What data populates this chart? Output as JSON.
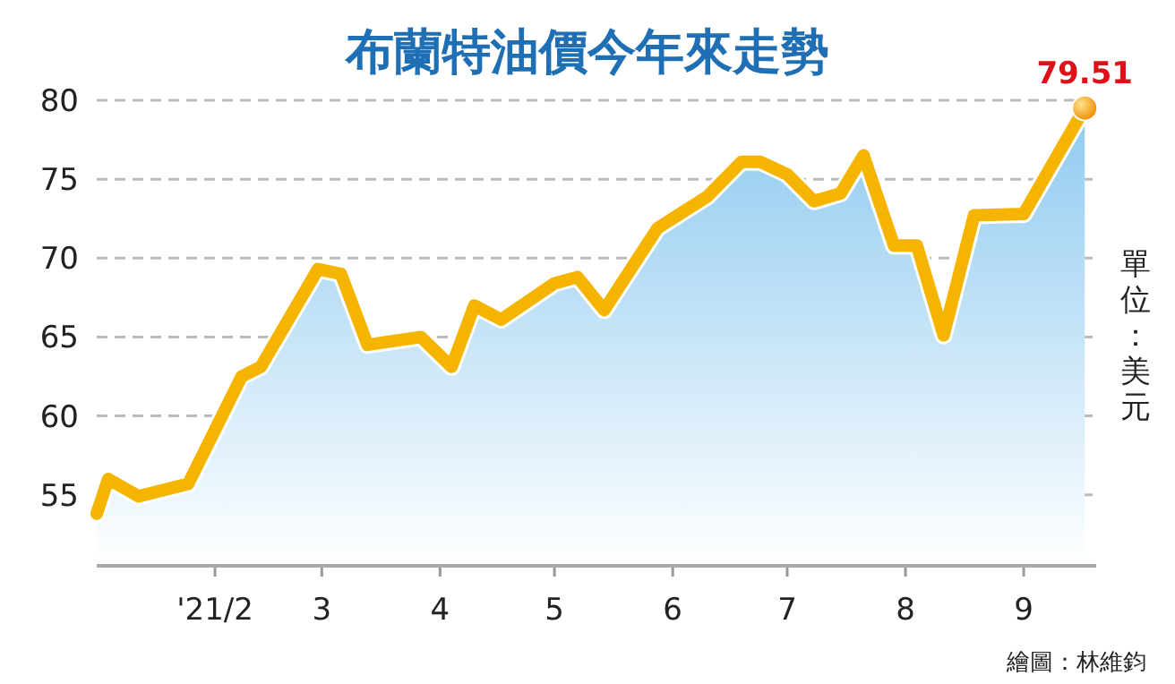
{
  "chart_data": {
    "type": "area",
    "title": "布蘭特油價今年來走勢",
    "ylabel": "單位：美元",
    "annotations": [
      "繪圖：林維鈞"
    ],
    "x": [
      "2021-01-01",
      "2021-01-04",
      "2021-01-12",
      "2021-01-25",
      "2021-02-08",
      "2021-02-13",
      "2021-02-28",
      "2021-03-06",
      "2021-03-13",
      "2021-03-27",
      "2021-04-04",
      "2021-04-10",
      "2021-04-17",
      "2021-05-01",
      "2021-05-07",
      "2021-05-14",
      "2021-05-28",
      "2021-06-10",
      "2021-06-19",
      "2021-06-24",
      "2021-07-01",
      "2021-07-08",
      "2021-07-15",
      "2021-07-21",
      "2021-07-29",
      "2021-08-04",
      "2021-08-11",
      "2021-08-19",
      "2021-09-01",
      "2021-09-17"
    ],
    "series": [
      {
        "color": "#f5b400",
        "values": [
          53.8,
          56.0,
          54.9,
          55.7,
          62.5,
          63.1,
          69.3,
          69.0,
          64.5,
          65.0,
          63.1,
          67.0,
          66.1,
          68.4,
          68.8,
          66.7,
          71.9,
          73.9,
          76.1,
          76.1,
          75.3,
          73.6,
          74.1,
          76.5,
          70.8,
          70.8,
          65.1,
          72.7,
          72.8,
          79.51
        ],
        "value_labels": [
          null,
          null,
          null,
          null,
          null,
          null,
          null,
          null,
          null,
          null,
          null,
          null,
          null,
          null,
          null,
          null,
          null,
          null,
          null,
          null,
          null,
          null,
          null,
          null,
          null,
          null,
          null,
          null,
          null,
          "79.51"
        ]
      }
    ],
    "xlim": [
      "2021-01-01",
      "2021-09-20"
    ],
    "xticks": [
      {
        "value": "2021-02-01",
        "label": "'21/2"
      },
      {
        "value": "2021-03-01",
        "label": "3"
      },
      {
        "value": "2021-04-01",
        "label": "4"
      },
      {
        "value": "2021-05-01",
        "label": "5"
      },
      {
        "value": "2021-06-01",
        "label": "6"
      },
      {
        "value": "2021-07-01",
        "label": "7"
      },
      {
        "value": "2021-08-01",
        "label": "8"
      },
      {
        "value": "2021-09-01",
        "label": "9"
      }
    ],
    "ylim": [
      50.5,
      80
    ],
    "yticks": [
      55,
      60,
      65,
      70,
      75,
      80
    ],
    "grid": "y",
    "marker": "none",
    "line_style": "solid"
  }
}
